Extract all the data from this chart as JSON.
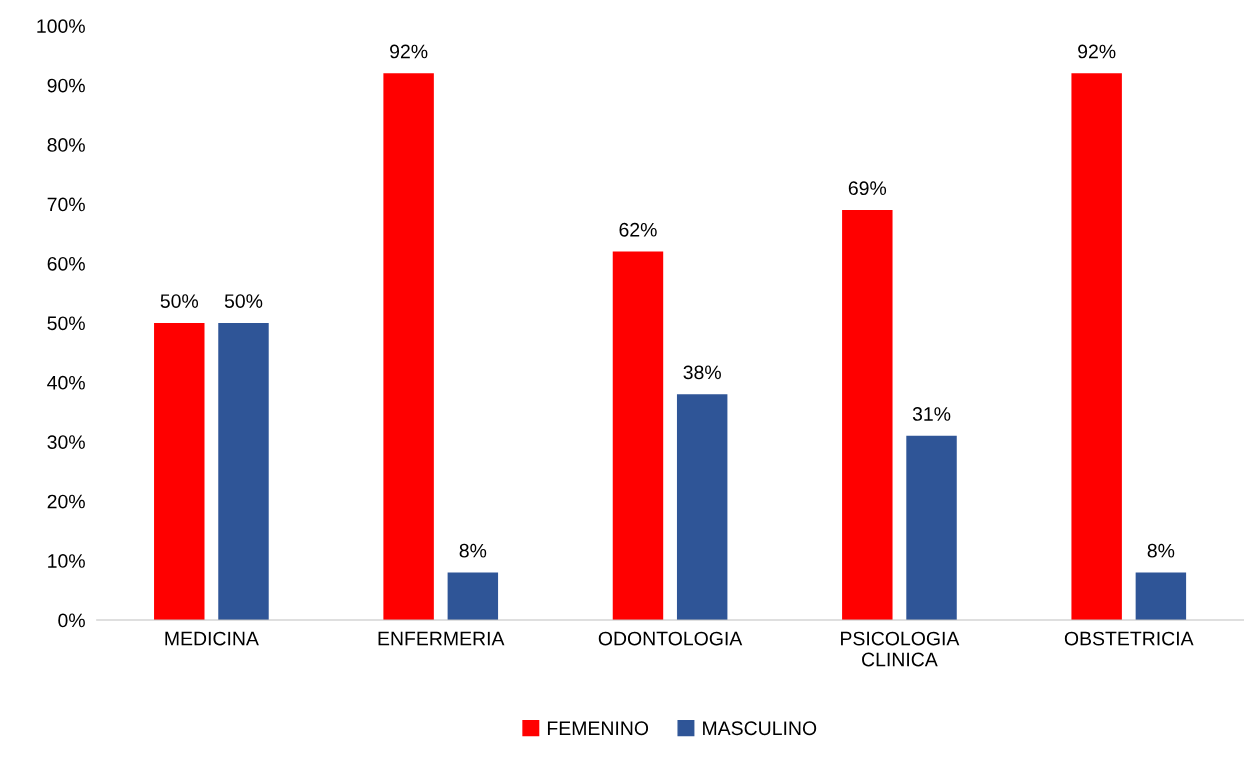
{
  "chart_data": {
    "type": "bar",
    "categories": [
      "MEDICINA",
      "ENFERMERIA",
      "ODONTOLOGIA",
      "PSICOLOGIA\nCLINICA",
      "OBSTETRICIA"
    ],
    "series": [
      {
        "name": "FEMENINO",
        "color": "#ff0000",
        "values": [
          50,
          92,
          62,
          69,
          92
        ],
        "value_labels": [
          "50%",
          "92%",
          "62%",
          "69%",
          "92%"
        ]
      },
      {
        "name": "MASCULINO",
        "color": "#2f5597",
        "values": [
          50,
          8,
          38,
          31,
          8
        ],
        "value_labels": [
          "50%",
          "8%",
          "38%",
          "31%",
          "8%"
        ]
      }
    ],
    "ylim": [
      0,
      100
    ],
    "yticks": [
      {
        "value": 0,
        "label": "0%"
      },
      {
        "value": 10,
        "label": "10%"
      },
      {
        "value": 20,
        "label": "20%"
      },
      {
        "value": 30,
        "label": "30%"
      },
      {
        "value": 40,
        "label": "40%"
      },
      {
        "value": 50,
        "label": "50%"
      },
      {
        "value": 60,
        "label": "60%"
      },
      {
        "value": 70,
        "label": "70%"
      },
      {
        "value": 80,
        "label": "80%"
      },
      {
        "value": 90,
        "label": "90%"
      },
      {
        "value": 100,
        "label": "100%"
      }
    ],
    "legend": "bottom",
    "grid": false
  }
}
